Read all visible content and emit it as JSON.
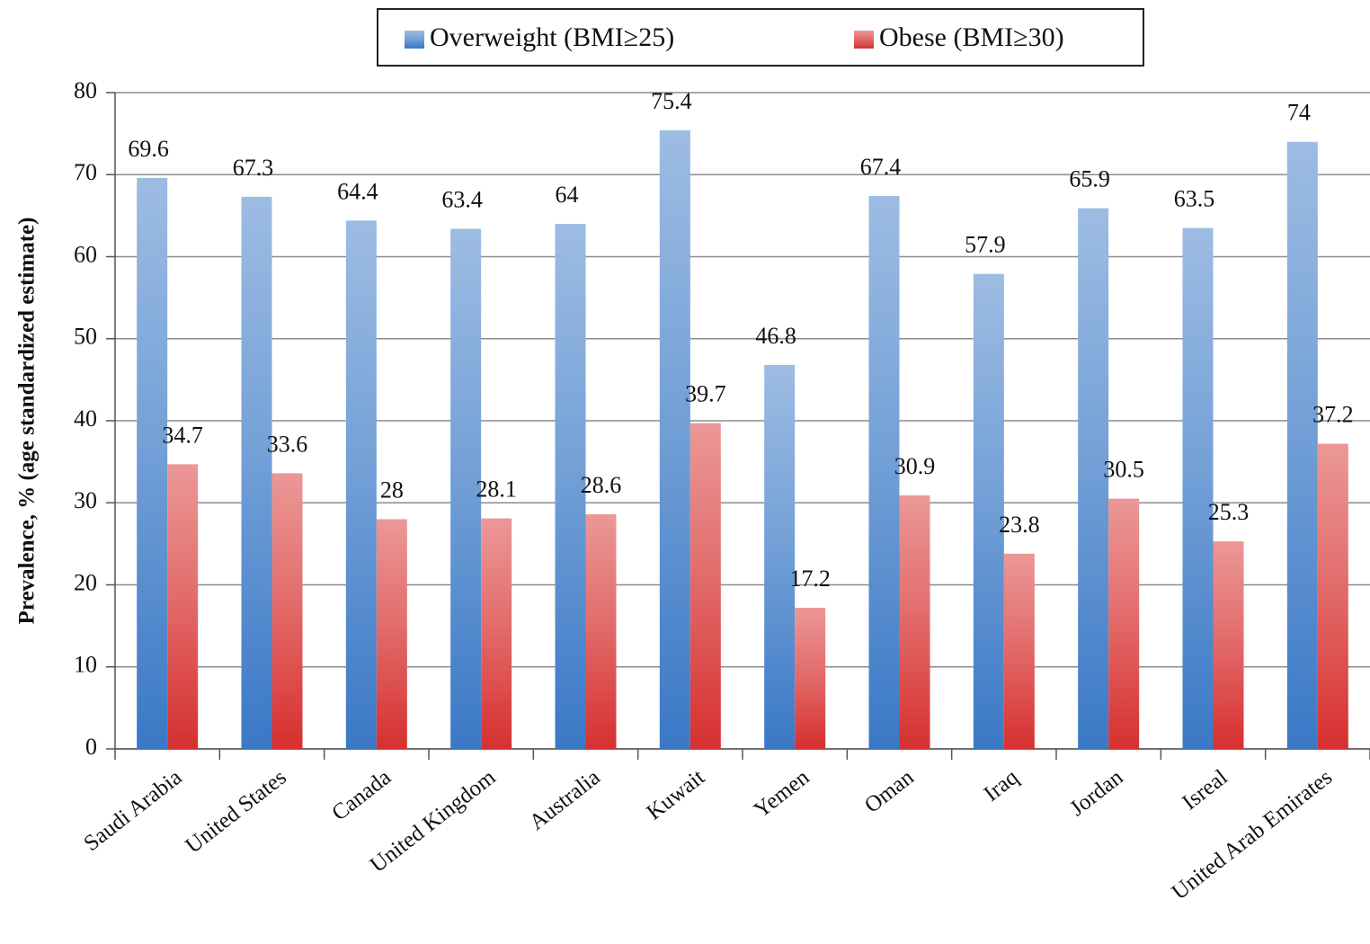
{
  "chart_data": {
    "type": "bar",
    "y_label": "Prevalence, % (age standardized estimate)",
    "categories": [
      "Saudi Arabia",
      "United States",
      "Canada",
      "United Kingdom",
      "Australia",
      "Kuwait",
      "Yemen",
      "Oman",
      "Iraq",
      "Jordan",
      "Isreal",
      "United Arab Emirates"
    ],
    "series": [
      {
        "name": "Overweight (BMI≥25)",
        "color": "#3a78c6",
        "values": [
          69.6,
          67.3,
          64.4,
          63.4,
          64,
          75.4,
          46.8,
          67.4,
          57.9,
          65.9,
          63.5,
          74
        ]
      },
      {
        "name": "Obese (BMI≥30)",
        "color": "#d6302f",
        "values": [
          34.7,
          33.6,
          28,
          28.1,
          28.6,
          39.7,
          17.2,
          30.9,
          23.8,
          30.5,
          25.3,
          37.2
        ]
      }
    ],
    "ylim": [
      0,
      80
    ],
    "yticks": [
      0,
      10,
      20,
      30,
      40,
      50,
      60,
      70,
      80
    ],
    "grid": true
  }
}
